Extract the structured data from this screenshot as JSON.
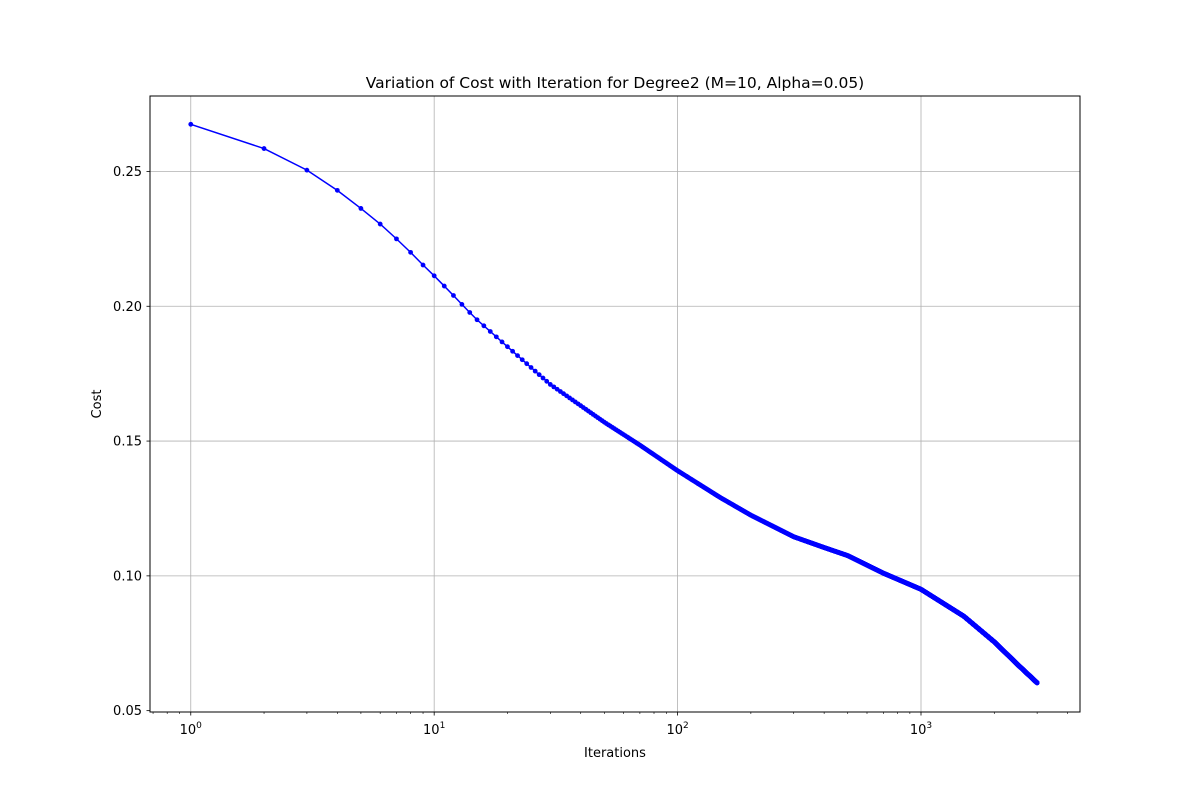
{
  "chart_data": {
    "type": "line",
    "title": "Variation of Cost with Iteration for Degree2 (M=10, Alpha=0.05)",
    "xlabel": "Iterations",
    "ylabel": "Cost",
    "xscale": "log",
    "xlim": [
      0.68,
      4500
    ],
    "ylim": [
      0.0495,
      0.278
    ],
    "grid": true,
    "x_ticks": [
      {
        "value": 1,
        "base": "10",
        "exp": "0"
      },
      {
        "value": 10,
        "base": "10",
        "exp": "1"
      },
      {
        "value": 100,
        "base": "10",
        "exp": "2"
      },
      {
        "value": 1000,
        "base": "10",
        "exp": "3"
      }
    ],
    "y_ticks": [
      {
        "value": 0.05,
        "label": "0.05"
      },
      {
        "value": 0.1,
        "label": "0.10"
      },
      {
        "value": 0.15,
        "label": "0.15"
      },
      {
        "value": 0.2,
        "label": "0.20"
      },
      {
        "value": 0.25,
        "label": "0.25"
      }
    ],
    "series": [
      {
        "color": "#0000ff",
        "marker": "dot",
        "x_range": [
          1,
          3000
        ],
        "key_points": [
          {
            "x": 1,
            "y": 0.2675
          },
          {
            "x": 2,
            "y": 0.2585
          },
          {
            "x": 3,
            "y": 0.2505
          },
          {
            "x": 4,
            "y": 0.243
          },
          {
            "x": 5,
            "y": 0.2363
          },
          {
            "x": 6,
            "y": 0.2305
          },
          {
            "x": 7,
            "y": 0.225
          },
          {
            "x": 8,
            "y": 0.22
          },
          {
            "x": 9,
            "y": 0.2153
          },
          {
            "x": 10,
            "y": 0.2113
          },
          {
            "x": 11,
            "y": 0.2075
          },
          {
            "x": 12,
            "y": 0.204
          },
          {
            "x": 13,
            "y": 0.2007
          },
          {
            "x": 14,
            "y": 0.1977
          },
          {
            "x": 15,
            "y": 0.195
          },
          {
            "x": 20,
            "y": 0.185
          },
          {
            "x": 30,
            "y": 0.171
          },
          {
            "x": 50,
            "y": 0.157
          },
          {
            "x": 70,
            "y": 0.1485
          },
          {
            "x": 100,
            "y": 0.139
          },
          {
            "x": 150,
            "y": 0.129
          },
          {
            "x": 200,
            "y": 0.1225
          },
          {
            "x": 300,
            "y": 0.1145
          },
          {
            "x": 400,
            "y": 0.1105
          },
          {
            "x": 500,
            "y": 0.1075
          },
          {
            "x": 700,
            "y": 0.101
          },
          {
            "x": 1000,
            "y": 0.095
          },
          {
            "x": 1500,
            "y": 0.085
          },
          {
            "x": 2000,
            "y": 0.0755
          },
          {
            "x": 2500,
            "y": 0.067
          },
          {
            "x": 3000,
            "y": 0.0603
          }
        ]
      }
    ]
  }
}
